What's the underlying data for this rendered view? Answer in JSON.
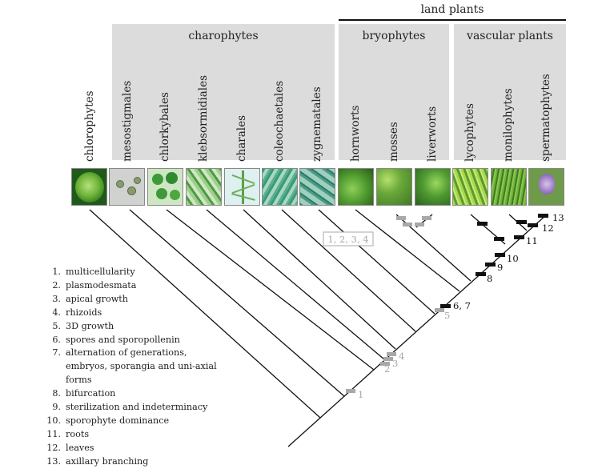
{
  "header": {
    "supergroup": "land plants",
    "groups": [
      {
        "id": "charophytes",
        "label": "charophytes"
      },
      {
        "id": "bryophytes",
        "label": "bryophytes"
      },
      {
        "id": "vascular",
        "label": "vascular plants"
      }
    ]
  },
  "taxa": [
    {
      "label": "chlorophytes",
      "img": "green-colony"
    },
    {
      "label": "mesostigmales",
      "img": "grey-cells"
    },
    {
      "label": "chlorkybales",
      "img": "green-cells"
    },
    {
      "label": "klebsormidiales",
      "img": "green-filaments"
    },
    {
      "label": "charales",
      "img": "stonewort"
    },
    {
      "label": "coleochaetales",
      "img": "green-filaments"
    },
    {
      "label": "zygnematales",
      "img": "green-filaments"
    },
    {
      "label": "hornworts",
      "img": "green-thallus"
    },
    {
      "label": "mosses",
      "img": "moss"
    },
    {
      "label": "liverworts",
      "img": "liverwort"
    },
    {
      "label": "lycophytes",
      "img": "clubmoss"
    },
    {
      "label": "monilophytes",
      "img": "fern"
    },
    {
      "label": "spermatophytes",
      "img": "flowering-plant"
    }
  ],
  "markers": {
    "m1": "1",
    "m2": "2",
    "m3": "3",
    "m4": "4",
    "m5": "5",
    "m67": "6, 7",
    "m8": "8",
    "m9": "9",
    "m10": "10",
    "m11": "11",
    "m12": "12",
    "m13": "13",
    "bryo_box": "1, 2, 3, 4"
  },
  "legend": [
    {
      "num": "1.",
      "text": "multicellularity"
    },
    {
      "num": "2.",
      "text": "plasmodesmata"
    },
    {
      "num": "3.",
      "text": "apical growth"
    },
    {
      "num": "4.",
      "text": "rhizoids"
    },
    {
      "num": "5.",
      "text": "3D growth"
    },
    {
      "num": "6.",
      "text": "spores and sporopollenin"
    },
    {
      "num": "7.",
      "text": "alternation of generations, embryos, sporangia and uni-axial forms"
    },
    {
      "num": "8.",
      "text": "bifurcation"
    },
    {
      "num": "9.",
      "text": "sterilization and indeterminacy"
    },
    {
      "num": "10.",
      "text": "sporophyte dominance"
    },
    {
      "num": "11.",
      "text": "roots"
    },
    {
      "num": "12.",
      "text": "leaves"
    },
    {
      "num": "13.",
      "text": "axillary branching"
    }
  ],
  "colors": {
    "band": "#dcdcdc",
    "gain_marker": "#111111",
    "inferred_marker": "#a8a8a8",
    "inferred_text": "#a8a8a8"
  }
}
